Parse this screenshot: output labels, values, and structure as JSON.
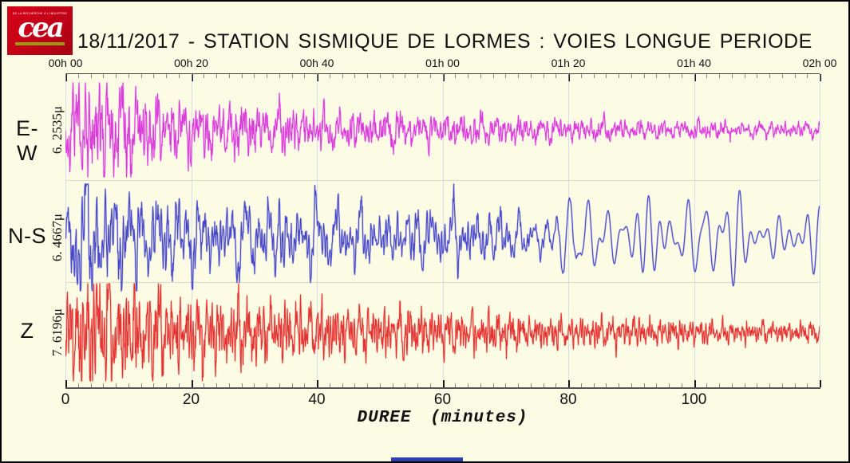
{
  "logo": {
    "tagline": "DE LA RECHERCHE À L'INDUSTRIE",
    "wordmark": "cea"
  },
  "header": {
    "title": "18/11/2017 - STATION SISMIQUE DE LORMES : VOIES LONGUE PERIODE"
  },
  "colors": {
    "background": "#fcfce5",
    "border": "#000000",
    "logo_red": "#c20016",
    "logo_underline": "#9a9a10",
    "footer_bar": "#2e3fae"
  },
  "chart_data": {
    "type": "line",
    "title": "18/11/2017 - STATION SISMIQUE DE LORMES : VOIES LONGUE PERIODE",
    "xlabel": "DUREE (minutes)",
    "x_range_minutes": [
      0,
      120
    ],
    "top_axis_labels": [
      "00h 00",
      "00h 20",
      "00h 40",
      "01h 00",
      "01h 20",
      "01h 40",
      "02h 00"
    ],
    "bottom_axis_labels": [
      "0",
      "20",
      "40",
      "60",
      "80",
      "100"
    ],
    "minor_tick_minutes": 2,
    "major_tick_minutes": 20,
    "grid": "faint vertical lines every 20 minutes; faint horizontal separators between the three traces",
    "series": [
      {
        "name": "E-W",
        "channel_label": "E-W",
        "peak_amplitude_label": "6. 2535μ",
        "color": "#d93bd9",
        "halo_color": "rgba(240,150,240,0.55)",
        "envelope_step_minutes": 2,
        "envelope": [
          0.35,
          1.0,
          0.8,
          0.85,
          0.75,
          0.7,
          0.62,
          0.6,
          0.55,
          0.5,
          0.48,
          0.5,
          0.45,
          0.42,
          0.45,
          0.4,
          0.38,
          0.4,
          0.36,
          0.34,
          0.35,
          0.32,
          0.3,
          0.32,
          0.3,
          0.28,
          0.3,
          0.27,
          0.26,
          0.28,
          0.25,
          0.24,
          0.26,
          0.23,
          0.22,
          0.24,
          0.21,
          0.2,
          0.21,
          0.19,
          0.18,
          0.19,
          0.17,
          0.16,
          0.17,
          0.15,
          0.15,
          0.16,
          0.14,
          0.14,
          0.15,
          0.13,
          0.13,
          0.14,
          0.13,
          0.12,
          0.13,
          0.12,
          0.12,
          0.13,
          0.12
        ]
      },
      {
        "name": "N-S",
        "channel_label": "N-S",
        "peak_amplitude_label": "6. 4667μ",
        "color": "#4646c8",
        "halo_color": "rgba(140,140,225,0.5)",
        "envelope_step_minutes": 2,
        "long_period_from_minute": 70,
        "envelope": [
          0.3,
          1.0,
          0.85,
          0.7,
          0.72,
          0.65,
          0.6,
          0.62,
          0.55,
          0.52,
          0.55,
          0.5,
          0.48,
          0.5,
          0.45,
          0.44,
          0.46,
          0.55,
          0.48,
          0.42,
          0.44,
          0.4,
          0.42,
          0.45,
          0.4,
          0.38,
          0.4,
          0.36,
          0.38,
          0.35,
          0.4,
          0.45,
          0.38,
          0.42,
          0.35,
          0.32,
          0.3,
          0.28,
          0.27,
          0.26,
          0.26,
          0.27,
          0.28,
          0.27,
          0.26,
          0.28,
          0.27,
          0.26,
          0.28,
          0.26,
          0.25,
          0.26,
          0.25,
          0.24,
          0.25,
          0.24,
          0.23,
          0.24,
          0.23,
          0.22,
          0.22
        ]
      },
      {
        "name": "Z",
        "channel_label": "Z",
        "peak_amplitude_label": "7. 6196μ",
        "color": "#e43131",
        "halo_color": "rgba(250,140,125,0.5)",
        "envelope_step_minutes": 2,
        "envelope": [
          0.4,
          0.95,
          1.0,
          0.9,
          0.95,
          0.85,
          0.75,
          0.7,
          0.65,
          0.6,
          0.58,
          0.6,
          0.55,
          0.5,
          0.55,
          0.48,
          0.45,
          0.42,
          0.44,
          0.4,
          0.45,
          0.4,
          0.36,
          0.38,
          0.36,
          0.4,
          0.35,
          0.38,
          0.33,
          0.3,
          0.32,
          0.3,
          0.28,
          0.3,
          0.32,
          0.28,
          0.25,
          0.24,
          0.25,
          0.22,
          0.22,
          0.24,
          0.21,
          0.2,
          0.25,
          0.22,
          0.2,
          0.18,
          0.2,
          0.18,
          0.17,
          0.18,
          0.16,
          0.16,
          0.17,
          0.15,
          0.15,
          0.16,
          0.14,
          0.14,
          0.14
        ]
      }
    ]
  }
}
